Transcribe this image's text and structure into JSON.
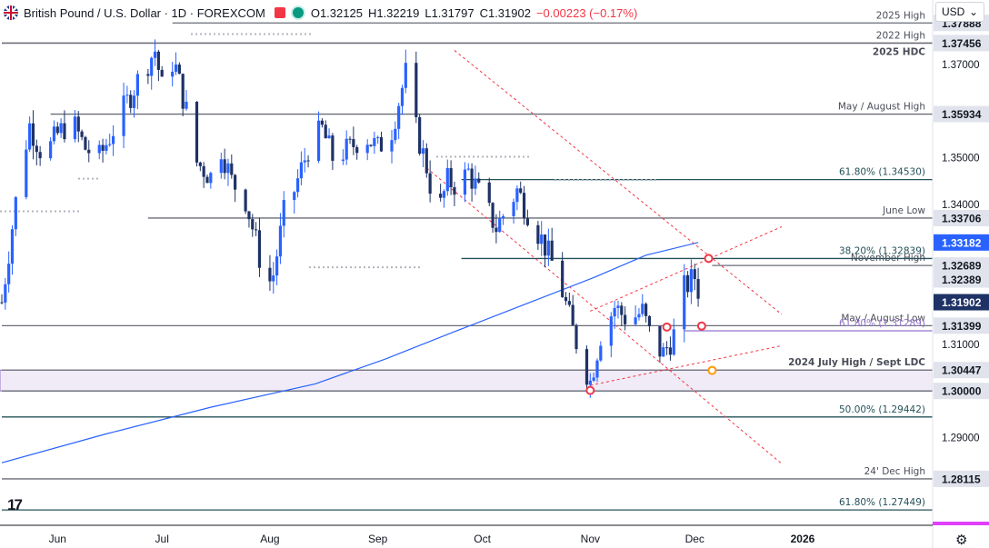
{
  "header": {
    "symbol": "British Pound / U.S. Dollar · 1D · FOREXCOM",
    "open": "O1.32125",
    "high": "H1.32219",
    "low": "L1.31797",
    "close": "C1.31902",
    "change": "−0.00223 (−0.17%)"
  },
  "currency_button": "USD",
  "colors": {
    "up": "#2962ff",
    "down": "#1e3266",
    "ma": "#2962ff",
    "support": "#9575cd",
    "channel": "#f23645"
  },
  "chart_data": {
    "type": "candlestick",
    "title": "British Pound / U.S. Dollar · 1D · FOREXCOM",
    "ylim": [
      1.2712,
      1.3838
    ],
    "x_range_days": [
      0,
      224
    ],
    "x_ticks": [
      {
        "label": "Jun",
        "day": 16
      },
      {
        "label": "Jul",
        "day": 46
      },
      {
        "label": "Aug",
        "day": 77
      },
      {
        "label": "Sep",
        "day": 108
      },
      {
        "label": "Oct",
        "day": 138
      },
      {
        "label": "Nov",
        "day": 169
      },
      {
        "label": "Dec",
        "day": 199
      },
      {
        "label": "2026",
        "day": 230
      }
    ],
    "y_ticks": [
      "1.37000",
      "1.35000",
      "1.34000",
      "1.31000",
      "1.29000"
    ],
    "y_tick_values": [
      1.37,
      1.35,
      1.34,
      1.31,
      1.29
    ],
    "levels": [
      {
        "label": "2025 High",
        "value": 1.37888,
        "start_day": 49
      },
      {
        "label": "2022 High",
        "value": 1.37456,
        "start_day": 0
      },
      {
        "label": "2025 HDC",
        "value": 1.37456,
        "start_day": 0
      },
      {
        "label": "May / August High",
        "value": 1.35934,
        "start_day": 14
      },
      {
        "label": "61.80% (1.34530)",
        "value": 1.3453,
        "start_day": 132
      },
      {
        "label": "June Low",
        "value": 1.33706,
        "start_day": 42
      },
      {
        "label": "38.20% (1.32839)",
        "value": 1.32839,
        "start_day": 132
      },
      {
        "label": "November High",
        "value": 1.32689,
        "start_day": 204
      },
      {
        "label": "May / August Low",
        "value": 1.31399,
        "start_day": 0
      },
      {
        "label": "61.80% (1.31289)",
        "value": 1.31289,
        "start_day": 196
      },
      {
        "label": "2024 July High / Sept LDC",
        "value": 1.30447,
        "start_day": 0
      },
      {
        "label": "",
        "value": 1.3,
        "start_day": 0
      },
      {
        "label": "50.00% (1.29442)",
        "value": 1.29442,
        "start_day": 0
      },
      {
        "label": "24' Dec High",
        "value": 1.28115,
        "start_day": 0
      },
      {
        "label": "61.80% (1.27449)",
        "value": 1.27449,
        "start_day": 0
      }
    ],
    "price_tags": [
      {
        "value": 1.37888,
        "text": "1.37888",
        "bg": "#e0e3eb",
        "fg": "#131722"
      },
      {
        "value": 1.37456,
        "text": "1.37456",
        "bg": "#e0e3eb",
        "fg": "#131722"
      },
      {
        "value": 1.35934,
        "text": "1.35934",
        "bg": "#e0e3eb",
        "fg": "#131722"
      },
      {
        "value": 1.33706,
        "text": "1.33706",
        "bg": "#e0e3eb",
        "fg": "#131722"
      },
      {
        "value": 1.33182,
        "text": "1.33182",
        "bg": "#2962ff",
        "fg": "#ffffff"
      },
      {
        "value": 1.32689,
        "text": "1.32689",
        "bg": "#e0e3eb",
        "fg": "#131722"
      },
      {
        "value": 1.32389,
        "text": "1.32389",
        "bg": "#e0e3eb",
        "fg": "#131722"
      },
      {
        "value": 1.31902,
        "text": "1.31902",
        "bg": "#1e3266",
        "fg": "#ffffff"
      },
      {
        "value": 1.31399,
        "text": "1.31399",
        "bg": "#e0e3eb",
        "fg": "#131722"
      },
      {
        "value": 1.30447,
        "text": "1.30447",
        "bg": "#e0e3eb",
        "fg": "#131722"
      },
      {
        "value": 1.3,
        "text": "1.30000",
        "bg": "#e0e3eb",
        "fg": "#131722"
      },
      {
        "value": 1.28115,
        "text": "1.28115",
        "bg": "#e0e3eb",
        "fg": "#131722"
      }
    ],
    "zone": {
      "from": 1.3,
      "to": 1.30447
    },
    "moving_average": {
      "days": [
        0,
        30,
        60,
        90,
        110,
        130,
        150,
        170,
        185,
        200
      ],
      "values": [
        1.2846,
        1.2908,
        1.2965,
        1.3015,
        1.3068,
        1.3127,
        1.3185,
        1.3243,
        1.3291,
        1.33182
      ]
    },
    "channel_lines": [
      {
        "days": [
          130,
          224
        ],
        "values": [
          1.373,
          1.3164
        ]
      },
      {
        "days": [
          122,
          224
        ],
        "values": [
          1.3478,
          1.2844
        ]
      },
      {
        "days": [
          169,
          224
        ],
        "values": [
          1.3012,
          1.3097
        ]
      },
      {
        "days": [
          169,
          224
        ],
        "values": [
          1.3171,
          1.3352
        ]
      }
    ],
    "markers": [
      {
        "day": 169,
        "value": 1.3001,
        "color": "#f23645"
      },
      {
        "day": 191,
        "value": 1.3137,
        "color": "#f23645"
      },
      {
        "day": 201,
        "value": 1.3139,
        "color": "#f23645"
      },
      {
        "day": 203,
        "value": 1.3284,
        "color": "#f23645"
      },
      {
        "day": 204,
        "value": 1.3044,
        "color": "#ff9800"
      }
    ],
    "ohlc_close_path": {
      "days": [
        0,
        5,
        8,
        12,
        16,
        20,
        24,
        28,
        32,
        36,
        40,
        44,
        46,
        48,
        50,
        53,
        56,
        60,
        63,
        66,
        70,
        73,
        76,
        78,
        81,
        84,
        88,
        92,
        95,
        100,
        104,
        108,
        112,
        114,
        117,
        119,
        122,
        125,
        128,
        131,
        134,
        138,
        142,
        145,
        148,
        152,
        156,
        160,
        164,
        166,
        169,
        172,
        176,
        180,
        184,
        187,
        190,
        193,
        196,
        199,
        201
      ],
      "values": [
        1.319,
        1.346,
        1.357,
        1.35,
        1.355,
        1.358,
        1.352,
        1.35,
        1.356,
        1.362,
        1.368,
        1.373,
        1.365,
        1.372,
        1.369,
        1.36,
        1.349,
        1.346,
        1.352,
        1.345,
        1.341,
        1.332,
        1.322,
        1.325,
        1.338,
        1.343,
        1.352,
        1.356,
        1.35,
        1.352,
        1.355,
        1.352,
        1.356,
        1.362,
        1.371,
        1.356,
        1.348,
        1.337,
        1.345,
        1.344,
        1.347,
        1.341,
        1.335,
        1.339,
        1.343,
        1.337,
        1.331,
        1.324,
        1.313,
        1.308,
        1.302,
        1.312,
        1.318,
        1.315,
        1.317,
        1.31,
        1.308,
        1.312,
        1.322,
        1.3245,
        1.319
      ]
    }
  }
}
